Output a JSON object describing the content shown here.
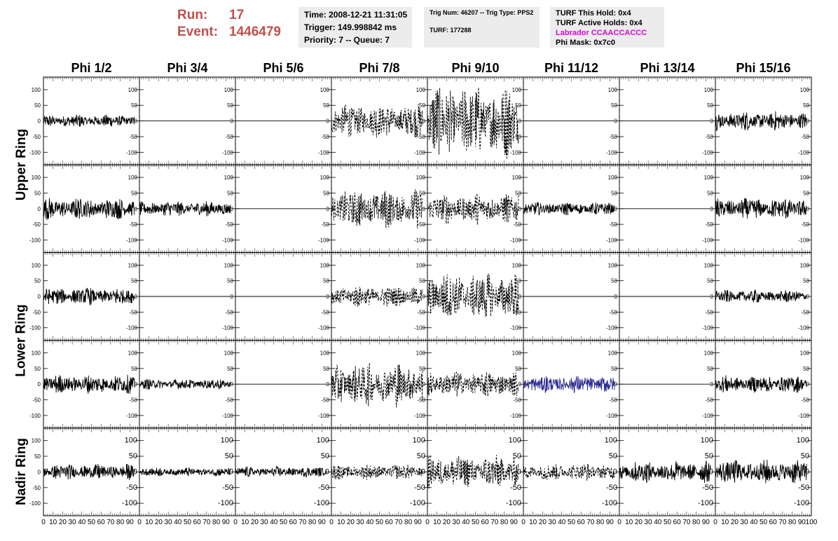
{
  "run_info": {
    "run_label": "Run:",
    "run_value": "17",
    "event_label": "Event:",
    "event_value": "1446479",
    "color": "#c0504d"
  },
  "trigger_info": {
    "time": "Time: 2008-12-21 11:31:05",
    "trigger": "Trigger: 149.998842 ms",
    "priority": "Priority: 7 -- Queue: 7"
  },
  "trig_info": {
    "trig_num": "Trig Num: 46207 -- Trig Type: PPS2",
    "turf": "TURF: 177288"
  },
  "turf_info": {
    "this_hold": "TURF This Hold: 0x4",
    "active_holds": "TURF Active Holds: 0x4",
    "labrador": "Labrador CCAACCACCC",
    "labrador_color": "#e000e0",
    "phi_mask": "Phi Mask: 0x7c0"
  },
  "chart_data": {
    "type": "line",
    "columns": [
      "Phi 1/2",
      "Phi 3/4",
      "Phi 5/6",
      "Phi 7/8",
      "Phi 9/10",
      "Phi 11/12",
      "Phi 13/14",
      "Phi 15/16"
    ],
    "rows": [
      "Upper Ring",
      "Upper Ring",
      "Lower Ring",
      "Lower Ring",
      "Nadir Ring"
    ],
    "row_labels": [
      {
        "label": "Upper Ring",
        "span": [
          0,
          1
        ]
      },
      {
        "label": "Lower Ring",
        "span": [
          2,
          3
        ]
      },
      {
        "label": "Nadir Ring",
        "span": [
          4,
          4
        ]
      }
    ],
    "xlim": [
      0,
      100
    ],
    "ylim": [
      -140,
      140
    ],
    "x_tick_labels": [
      "0",
      "10",
      "20",
      "30",
      "40",
      "50",
      "60",
      "70",
      "80",
      "90",
      "100"
    ],
    "y_tick_values": [
      100,
      50,
      0,
      -50,
      -100
    ],
    "y_tick_labels": [
      "100",
      "50",
      "0",
      "-50",
      "-100"
    ],
    "trace_x_range": [
      0,
      95
    ],
    "line_color": "#000000",
    "highlight_color": "#2b2b8f",
    "amplitudes": [
      [
        15,
        0,
        0,
        40,
        85,
        0,
        0,
        22
      ],
      [
        25,
        18,
        0,
        45,
        35,
        15,
        0,
        25
      ],
      [
        20,
        0,
        0,
        25,
        55,
        0,
        0,
        15
      ],
      [
        22,
        12,
        0,
        50,
        30,
        20,
        0,
        20
      ],
      [
        18,
        10,
        12,
        18,
        40,
        20,
        25,
        28
      ]
    ],
    "dashed": [
      [
        false,
        false,
        false,
        true,
        true,
        false,
        false,
        false
      ],
      [
        false,
        false,
        false,
        true,
        true,
        false,
        false,
        false
      ],
      [
        false,
        false,
        false,
        true,
        true,
        false,
        false,
        false
      ],
      [
        false,
        false,
        false,
        true,
        true,
        false,
        false,
        false
      ],
      [
        false,
        false,
        false,
        true,
        true,
        true,
        false,
        false
      ]
    ],
    "highlighted": [
      [
        3,
        5
      ]
    ]
  }
}
